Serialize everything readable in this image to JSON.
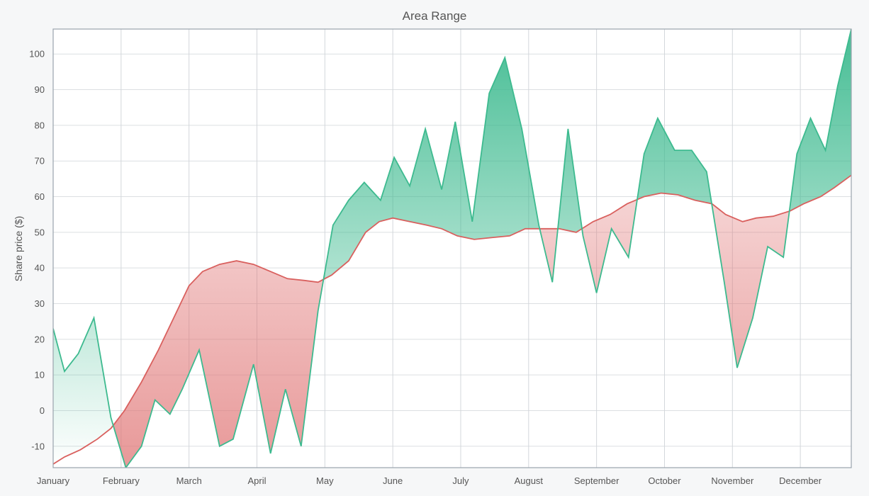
{
  "chart_data": {
    "type": "area",
    "title": "Area Range",
    "xlabel": "",
    "ylabel": "Share price ($)",
    "x_ticks": [
      "January",
      "February",
      "March",
      "April",
      "May",
      "June",
      "July",
      "August",
      "September",
      "October",
      "November",
      "December"
    ],
    "y_ticks": [
      -10,
      0,
      10,
      20,
      30,
      40,
      50,
      60,
      70,
      80,
      90,
      100
    ],
    "ylim": [
      -16,
      107
    ],
    "xlim": [
      0,
      11.75
    ],
    "grid": true,
    "legend": "none",
    "colors": {
      "above": "#3dba8f",
      "below": "#e07676",
      "line_green": "#3dba8f",
      "line_red": "#d9605e"
    },
    "series": [
      {
        "points": [
          [
            0,
            23
          ],
          [
            0.167,
            11
          ],
          [
            0.37,
            16
          ],
          [
            0.6,
            26
          ],
          [
            0.85,
            -2
          ],
          [
            1.07,
            -16
          ],
          [
            1.3,
            -10
          ],
          [
            1.5,
            3
          ],
          [
            1.72,
            -1
          ],
          [
            1.9,
            6
          ],
          [
            2.15,
            17
          ],
          [
            2.45,
            -10
          ],
          [
            2.65,
            -8
          ],
          [
            2.95,
            13
          ],
          [
            3.2,
            -12
          ],
          [
            3.42,
            6
          ],
          [
            3.65,
            -10
          ],
          [
            3.9,
            28
          ],
          [
            4.12,
            52
          ],
          [
            4.35,
            59
          ],
          [
            4.58,
            64
          ],
          [
            4.82,
            59
          ],
          [
            5.02,
            71
          ],
          [
            5.25,
            63
          ],
          [
            5.48,
            79
          ],
          [
            5.72,
            62
          ],
          [
            5.92,
            81
          ],
          [
            6.17,
            53
          ],
          [
            6.42,
            89
          ],
          [
            6.65,
            99
          ],
          [
            6.9,
            79
          ],
          [
            7.15,
            52
          ],
          [
            7.35,
            36
          ],
          [
            7.58,
            79
          ],
          [
            7.8,
            49
          ],
          [
            8.0,
            33
          ],
          [
            8.22,
            51
          ],
          [
            8.47,
            43
          ],
          [
            8.7,
            72
          ],
          [
            8.9,
            82
          ],
          [
            9.15,
            73
          ],
          [
            9.4,
            73
          ],
          [
            9.62,
            67
          ],
          [
            9.88,
            36
          ],
          [
            10.07,
            12
          ],
          [
            10.3,
            26
          ],
          [
            10.52,
            46
          ],
          [
            10.75,
            43
          ],
          [
            10.95,
            72
          ],
          [
            11.15,
            82
          ],
          [
            11.37,
            73
          ],
          [
            11.55,
            91
          ],
          [
            11.75,
            107
          ]
        ]
      },
      {
        "points": [
          [
            0,
            -15
          ],
          [
            0.167,
            -13
          ],
          [
            0.4,
            -11
          ],
          [
            0.65,
            -8
          ],
          [
            0.85,
            -5
          ],
          [
            1.05,
            0
          ],
          [
            1.3,
            8
          ],
          [
            1.55,
            17
          ],
          [
            1.8,
            27
          ],
          [
            2.0,
            35
          ],
          [
            2.2,
            39
          ],
          [
            2.45,
            41
          ],
          [
            2.7,
            42
          ],
          [
            2.95,
            41
          ],
          [
            3.2,
            39
          ],
          [
            3.45,
            37
          ],
          [
            3.7,
            36.5
          ],
          [
            3.9,
            36
          ],
          [
            4.1,
            38
          ],
          [
            4.35,
            42
          ],
          [
            4.6,
            50
          ],
          [
            4.8,
            53
          ],
          [
            5.0,
            54
          ],
          [
            5.25,
            53
          ],
          [
            5.5,
            52
          ],
          [
            5.72,
            51
          ],
          [
            5.95,
            49
          ],
          [
            6.2,
            48
          ],
          [
            6.45,
            48.5
          ],
          [
            6.72,
            49
          ],
          [
            6.95,
            51
          ],
          [
            7.2,
            51
          ],
          [
            7.45,
            51
          ],
          [
            7.7,
            50
          ],
          [
            7.95,
            53
          ],
          [
            8.2,
            55
          ],
          [
            8.45,
            58
          ],
          [
            8.7,
            60
          ],
          [
            8.95,
            61
          ],
          [
            9.2,
            60.5
          ],
          [
            9.45,
            59
          ],
          [
            9.7,
            58
          ],
          [
            9.9,
            55
          ],
          [
            10.15,
            53
          ],
          [
            10.35,
            54
          ],
          [
            10.6,
            54.5
          ],
          [
            10.85,
            56
          ],
          [
            11.05,
            58
          ],
          [
            11.3,
            60
          ],
          [
            11.5,
            62.5
          ],
          [
            11.75,
            66
          ]
        ]
      }
    ]
  }
}
